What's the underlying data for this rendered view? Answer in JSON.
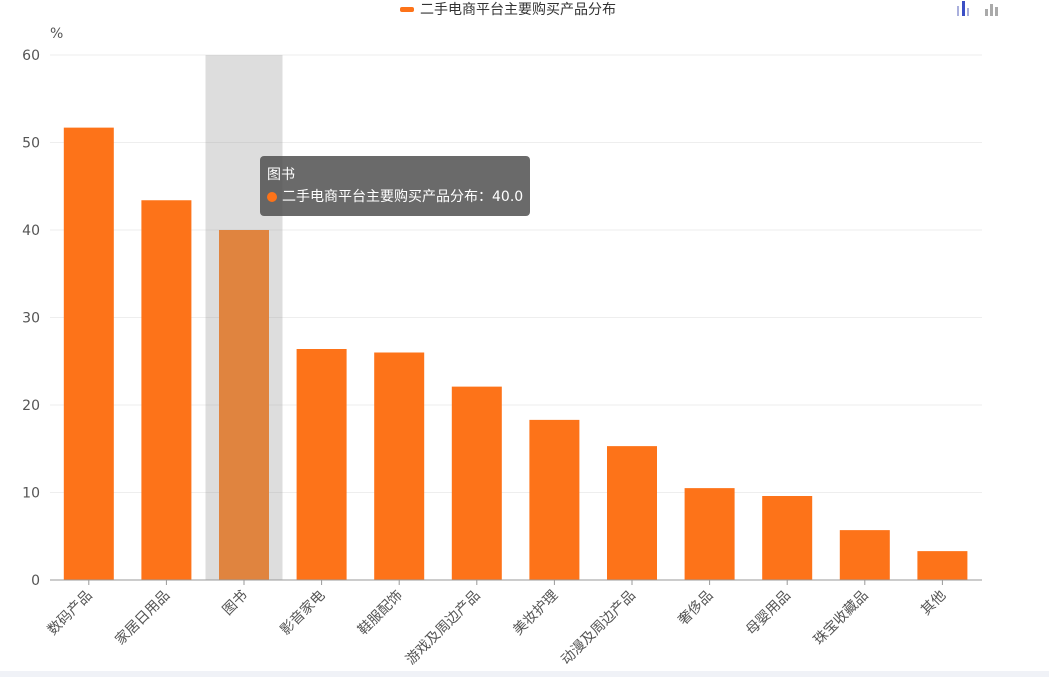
{
  "chart_data": {
    "type": "bar",
    "series_name": "二手电商平台主要购买产品分布",
    "y_unit": "%",
    "ylim": [
      0,
      60
    ],
    "yticks": [
      0,
      10,
      20,
      30,
      40,
      50,
      60
    ],
    "categories": [
      "数码产品",
      "家居日用品",
      "图书",
      "影音家电",
      "鞋服配饰",
      "游戏及周边产品",
      "美妆护理",
      "动漫及周边产品",
      "奢侈品",
      "母婴用品",
      "珠宝收藏品",
      "其他"
    ],
    "values": [
      51.7,
      43.4,
      40.0,
      26.4,
      26.0,
      22.1,
      18.3,
      15.3,
      10.5,
      9.6,
      5.7,
      3.3
    ],
    "legend_position": "top-center",
    "grid": true,
    "bar_color": "#fd7319",
    "highlight_color": "#e0843f",
    "highlight_index": 2
  },
  "tooltip": {
    "title": "图书",
    "series_label": "二手电商平台主要购买产品分布",
    "separator": "：",
    "value_text": "40.0"
  },
  "toolbox": {
    "bar_icon_color": "#3b4fc5",
    "gray_icon_color": "#aaaaaa"
  }
}
